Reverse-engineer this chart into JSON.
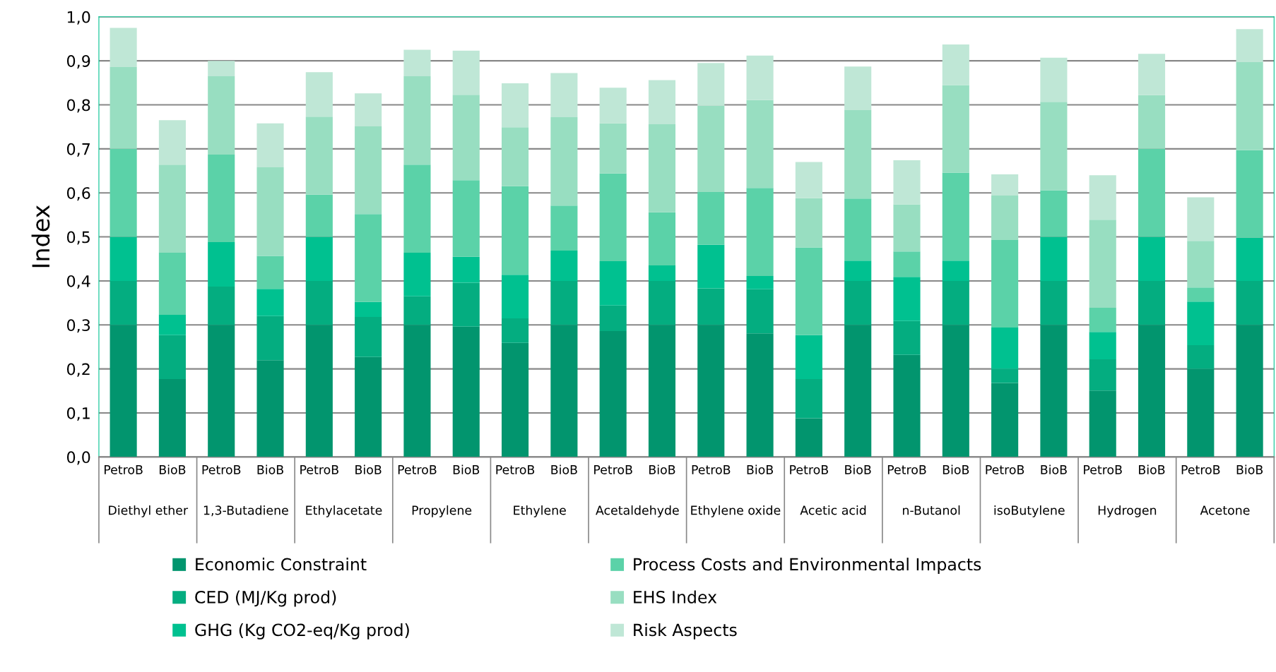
{
  "chart_data": {
    "type": "bar",
    "stacked": true,
    "ylabel": "Index",
    "categories": [
      "PetroB",
      "BioB",
      "PetroB",
      "BioB",
      "PetroB",
      "BioB",
      "PetroB",
      "BioB",
      "PetroB",
      "BioB",
      "PetroB",
      "BioB",
      "PetroB",
      "BioB",
      "PetroB",
      "BioB",
      "PetroB",
      "BioB",
      "PetroB",
      "BioB",
      "PetroB",
      "BioB",
      "PetroB",
      "BioB"
    ],
    "annotations": [
      "Diethyl ether",
      "1,3-Butadiene",
      "Ethylacetate",
      "Propylene",
      "Ethylene",
      "Acetaldehyde",
      "Ethylene oxide",
      "Acetic acid",
      "n-Butanol",
      "isoButylene",
      "Hydrogen",
      "Acetone"
    ],
    "series": [
      {
        "name": "Economic Constraint",
        "color": "#02956e",
        "values": [
          0.3,
          0.177,
          0.3,
          0.22,
          0.3,
          0.227,
          0.3,
          0.296,
          0.259,
          0.3,
          0.286,
          0.3,
          0.3,
          0.281,
          0.088,
          0.3,
          0.232,
          0.3,
          0.168,
          0.3,
          0.151,
          0.3,
          0.2,
          0.3
        ]
      },
      {
        "name": "CED (MJ/Kg prod)",
        "color": "#04ad80",
        "values": [
          0.1,
          0.1,
          0.087,
          0.1,
          0.1,
          0.091,
          0.065,
          0.1,
          0.056,
          0.1,
          0.058,
          0.1,
          0.083,
          0.1,
          0.089,
          0.1,
          0.077,
          0.1,
          0.032,
          0.1,
          0.071,
          0.1,
          0.054,
          0.1
        ]
      },
      {
        "name": "GHG (Kg CO2-eq/Kg prod)",
        "color": "#00c190",
        "values": [
          0.1,
          0.046,
          0.101,
          0.062,
          0.1,
          0.034,
          0.099,
          0.059,
          0.099,
          0.069,
          0.101,
          0.035,
          0.099,
          0.03,
          0.1,
          0.046,
          0.1,
          0.046,
          0.094,
          0.1,
          0.062,
          0.1,
          0.099,
          0.098
        ]
      },
      {
        "name": "Process Costs and Environmental Impacts",
        "color": "#5bd2a8",
        "values": [
          0.2,
          0.141,
          0.199,
          0.075,
          0.096,
          0.2,
          0.2,
          0.174,
          0.201,
          0.102,
          0.199,
          0.121,
          0.12,
          0.2,
          0.199,
          0.141,
          0.058,
          0.2,
          0.199,
          0.106,
          0.055,
          0.2,
          0.032,
          0.199
        ]
      },
      {
        "name": "EHS Index",
        "color": "#98dec1",
        "values": [
          0.186,
          0.2,
          0.178,
          0.201,
          0.177,
          0.199,
          0.201,
          0.194,
          0.134,
          0.201,
          0.114,
          0.2,
          0.196,
          0.2,
          0.112,
          0.201,
          0.107,
          0.199,
          0.101,
          0.201,
          0.2,
          0.122,
          0.106,
          0.2
        ]
      },
      {
        "name": "Risk Aspects",
        "color": "#bfe7d6",
        "values": [
          0.089,
          0.101,
          0.035,
          0.1,
          0.101,
          0.075,
          0.06,
          0.1,
          0.1,
          0.1,
          0.081,
          0.1,
          0.097,
          0.101,
          0.082,
          0.099,
          0.1,
          0.092,
          0.048,
          0.1,
          0.101,
          0.094,
          0.099,
          0.075
        ]
      }
    ],
    "ylim": [
      0,
      1
    ],
    "yticks": [
      {
        "value": 0,
        "label": "0,0"
      },
      {
        "value": 0.1,
        "label": "0,1"
      },
      {
        "value": 0.2,
        "label": "0,2"
      },
      {
        "value": 0.3,
        "label": "0,3"
      },
      {
        "value": 0.4,
        "label": "0,4"
      },
      {
        "value": 0.5,
        "label": "0,5"
      },
      {
        "value": 0.6,
        "label": "0,6"
      },
      {
        "value": 0.7,
        "label": "0,7"
      },
      {
        "value": 0.8,
        "label": "0,8"
      },
      {
        "value": 0.9,
        "label": "0,9"
      },
      {
        "value": 1.0,
        "label": "1,0"
      }
    ],
    "grid": "y",
    "legend": "bottom"
  }
}
